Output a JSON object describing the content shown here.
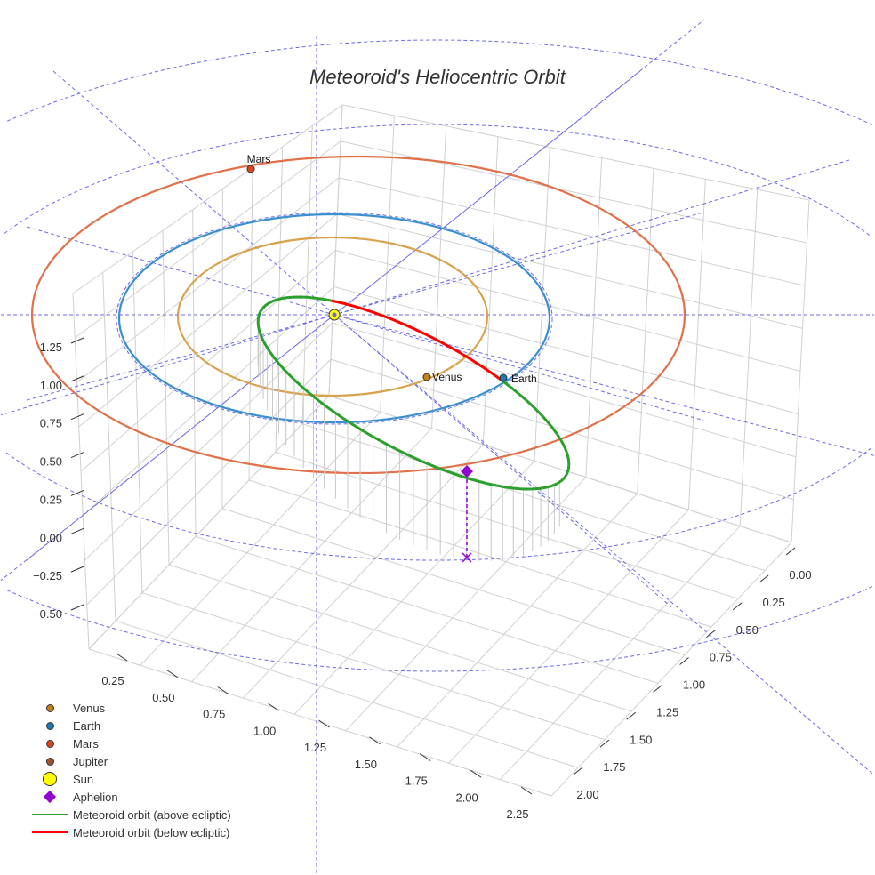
{
  "chart_data": {
    "type": "scatter3d",
    "title": "Meteoroid's Heliocentric Orbit",
    "z_ticks": [
      "1.25",
      "1.00",
      "0.75",
      "0.50",
      "0.25",
      "0.00",
      "−0.25",
      "−0.50"
    ],
    "x_ticks": [
      "0.25",
      "0.50",
      "0.75",
      "1.00",
      "1.25",
      "1.50",
      "1.75",
      "2.00",
      "2.25"
    ],
    "y_ticks": [
      "0.00",
      "0.25",
      "0.50",
      "0.75",
      "1.00",
      "1.25",
      "1.50",
      "1.75",
      "2.00"
    ],
    "point_labels": {
      "mars": "Mars",
      "venus": "Venus",
      "earth": "Earth"
    },
    "colors": {
      "venus": "#c8801a",
      "earth": "#1f77b4",
      "mars": "#d9481a",
      "jupiter": "#a0522d",
      "sun": "#ffff00",
      "aphelion": "#9400d3",
      "above": "#2ca02c",
      "below": "#ff0000",
      "mars_orbit": "#e0714a",
      "earth_orbit": "#3a8fd0",
      "venus_orbit": "#d8a24e",
      "grid": "#d0d0d0",
      "guide": "#6a6ae8"
    },
    "legend": [
      {
        "label": "Venus",
        "type": "dot",
        "color": "#c8801a"
      },
      {
        "label": "Earth",
        "type": "dot",
        "color": "#1f77b4"
      },
      {
        "label": "Mars",
        "type": "dot",
        "color": "#d9481a"
      },
      {
        "label": "Jupiter",
        "type": "dot",
        "color": "#a0522d"
      },
      {
        "label": "Sun",
        "type": "sun",
        "color": "#ffff00"
      },
      {
        "label": "Aphelion",
        "type": "diamond",
        "color": "#9400d3"
      },
      {
        "label": "Meteoroid orbit (above ecliptic)",
        "type": "line",
        "color": "#2ca02c"
      },
      {
        "label": "Meteoroid orbit (below ecliptic)",
        "type": "line",
        "color": "#ff0000"
      }
    ]
  }
}
